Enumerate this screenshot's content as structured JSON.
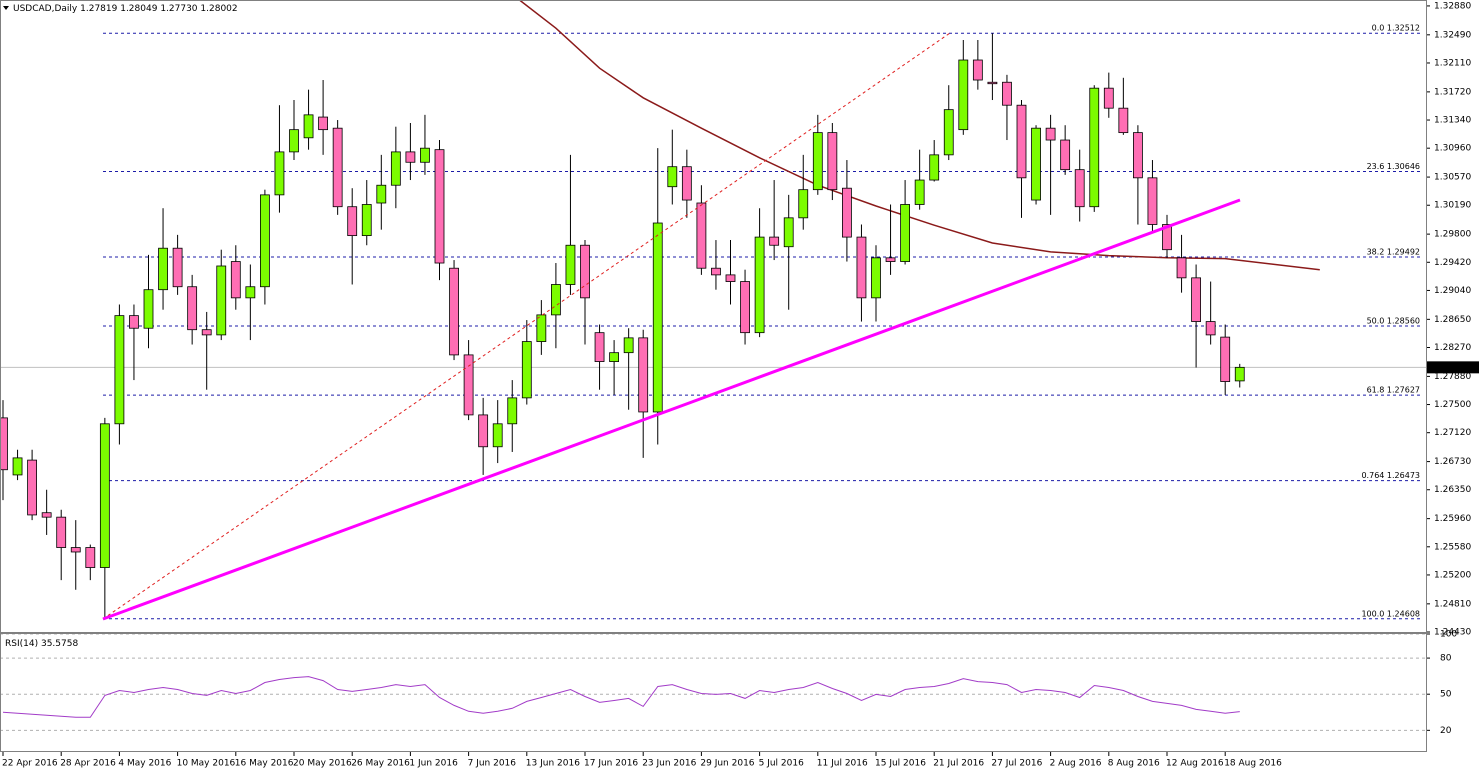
{
  "chart_data": [
    {
      "type": "candlestick",
      "title": "USDCAD,Daily",
      "quote": [
        "1.27819",
        "1.28049",
        "1.27730",
        "1.28002"
      ],
      "categories": [
        "22 Apr 2016",
        null,
        null,
        null,
        "28 Apr 2016",
        null,
        null,
        null,
        "4 May 2016",
        null,
        null,
        null,
        "10 May 2016",
        null,
        null,
        null,
        "16 May 2016",
        null,
        null,
        null,
        "20 May 2016",
        null,
        null,
        null,
        "26 May 2016",
        null,
        null,
        null,
        "1 Jun 2016",
        null,
        null,
        null,
        "7 Jun 2016",
        null,
        null,
        null,
        "13 Jun 2016",
        null,
        null,
        null,
        "17 Jun 2016",
        null,
        null,
        null,
        "23 Jun 2016",
        null,
        null,
        null,
        "29 Jun 2016",
        null,
        null,
        null,
        "5 Jul 2016",
        null,
        null,
        null,
        "11 Jul 2016",
        null,
        null,
        null,
        "15 Jul 2016",
        null,
        null,
        null,
        "21 Jul 2016",
        null,
        null,
        null,
        "27 Jul 2016",
        null,
        null,
        null,
        "2 Aug 2016",
        null,
        null,
        null,
        "8 Aug 2016",
        null,
        null,
        null,
        "12 Aug 2016",
        null,
        null,
        null,
        "18 Aug 2016",
        null
      ],
      "open": [
        1.2732,
        1.2655,
        1.2675,
        1.2604,
        1.2598,
        1.2557,
        1.2557,
        1.253,
        1.2724,
        1.287,
        1.2853,
        1.2905,
        1.2961,
        1.2909,
        1.2851,
        1.2844,
        1.2943,
        1.2894,
        1.2909,
        1.3033,
        1.3091,
        1.311,
        1.3138,
        1.3123,
        1.3017,
        1.2978,
        1.3022,
        1.3046,
        1.3091,
        1.3077,
        1.3094,
        1.2934,
        1.2817,
        1.2736,
        1.2693,
        1.2724,
        1.2759,
        1.2835,
        1.2871,
        1.2912,
        1.2965,
        1.2847,
        1.2808,
        1.282,
        1.284,
        1.274,
        1.3044,
        1.3071,
        1.3022,
        1.2934,
        1.2925,
        1.2916,
        1.2847,
        1.2976,
        1.2963,
        1.3002,
        1.304,
        1.3117,
        1.3042,
        1.2976,
        1.2894,
        1.2948,
        1.2943,
        1.302,
        1.3053,
        1.3087,
        1.3121,
        1.3215,
        1.3185,
        1.3185,
        1.3154,
        1.3026,
        1.3123,
        1.3107,
        1.3067,
        1.3017,
        1.3177,
        1.315,
        1.3117,
        1.3056,
        1.2993,
        1.2948,
        1.2921,
        1.2862,
        1.2841,
        1.27819
      ],
      "high": [
        1.2756,
        1.2689,
        1.2689,
        1.2635,
        1.2608,
        1.2594,
        1.2561,
        1.2732,
        1.2885,
        1.2885,
        1.2952,
        1.3015,
        1.2979,
        1.2925,
        1.2875,
        1.2959,
        1.2965,
        1.2939,
        1.304,
        1.3154,
        1.3161,
        1.3175,
        1.3188,
        1.3134,
        1.3042,
        1.3053,
        1.3087,
        1.3125,
        1.313,
        1.3141,
        1.3107,
        1.2945,
        1.2837,
        1.2759,
        1.2756,
        1.2783,
        1.2864,
        1.2891,
        1.2941,
        1.3087,
        1.2972,
        1.2858,
        1.2837,
        1.2853,
        1.2851,
        1.3096,
        1.3121,
        1.3094,
        1.3046,
        1.2972,
        1.2972,
        1.2932,
        1.3015,
        1.3053,
        1.3033,
        1.3087,
        1.3141,
        1.313,
        1.308,
        1.2993,
        1.2965,
        1.302,
        1.3053,
        1.3094,
        1.3107,
        1.3181,
        1.3242,
        1.3242,
        1.3251,
        1.3195,
        1.3161,
        1.3127,
        1.3141,
        1.3127,
        1.3094,
        1.3181,
        1.3198,
        1.3191,
        1.3127,
        1.308,
        1.3006,
        1.2979,
        1.2939,
        1.2916,
        1.2858,
        1.28049
      ],
      "low": [
        1.2621,
        1.2648,
        1.2594,
        1.2574,
        1.2513,
        1.25,
        1.2513,
        1.2462,
        1.2696,
        1.2783,
        1.2826,
        1.2878,
        1.2898,
        1.2831,
        1.277,
        1.2837,
        1.2878,
        1.2837,
        1.2885,
        1.3009,
        1.308,
        1.3094,
        1.3087,
        1.3006,
        1.2912,
        1.2965,
        1.2986,
        1.3015,
        1.3053,
        1.306,
        1.2918,
        1.281,
        1.2729,
        1.2655,
        1.2671,
        1.2686,
        1.275,
        1.2817,
        1.2826,
        1.2898,
        1.2831,
        1.277,
        1.2763,
        1.2743,
        1.2678,
        1.2696,
        1.302,
        1.3002,
        1.2925,
        1.2905,
        1.2885,
        1.2831,
        1.2841,
        1.2945,
        1.2878,
        1.2986,
        1.3033,
        1.3026,
        1.2943,
        1.2862,
        1.2862,
        1.2925,
        1.2939,
        1.3013,
        1.3051,
        1.308,
        1.3114,
        1.3175,
        1.3161,
        1.3107,
        1.3002,
        1.302,
        1.3006,
        1.306,
        1.2997,
        1.301,
        1.3137,
        1.3114,
        1.2993,
        1.2983,
        1.2948,
        1.2901,
        1.28,
        1.2831,
        1.2763,
        1.2773
      ],
      "close": [
        1.2662,
        1.2678,
        1.2601,
        1.2598,
        1.2557,
        1.2551,
        1.253,
        1.2724,
        1.287,
        1.2853,
        1.2905,
        1.2961,
        1.2909,
        1.2851,
        1.2844,
        1.2937,
        1.2894,
        1.2909,
        1.3033,
        1.3091,
        1.3121,
        1.3141,
        1.3121,
        1.3017,
        1.2978,
        1.302,
        1.3046,
        1.3091,
        1.3077,
        1.3096,
        1.2941,
        1.2817,
        1.2736,
        1.2693,
        1.2724,
        1.2759,
        1.2835,
        1.2871,
        1.2912,
        1.2965,
        1.2894,
        1.2808,
        1.282,
        1.284,
        1.274,
        1.2995,
        1.3071,
        1.3026,
        1.2934,
        1.2925,
        1.2916,
        1.2847,
        1.2976,
        1.2965,
        1.3002,
        1.304,
        1.3117,
        1.304,
        1.2976,
        1.2894,
        1.2948,
        1.2943,
        1.302,
        1.3053,
        1.3087,
        1.3148,
        1.3215,
        1.3188,
        1.3183,
        1.3154,
        1.3056,
        1.3123,
        1.3107,
        1.3067,
        1.3017,
        1.3177,
        1.315,
        1.3117,
        1.3056,
        1.2993,
        1.2959,
        1.2921,
        1.2862,
        1.2844,
        1.2781,
        1.28002
      ],
      "up_color": "#7cfc00",
      "down_color": "#ff6eb4",
      "overlay": {
        "color": "#8b1a1a",
        "x": [
          35.5,
          38,
          41,
          44,
          48,
          52,
          56,
          60,
          64,
          68,
          72,
          76,
          80,
          84,
          90.5
        ],
        "values": [
          1.3296,
          1.3258,
          1.3204,
          1.3164,
          1.3123,
          1.3083,
          1.3046,
          1.3018,
          1.2992,
          1.2968,
          1.2956,
          1.2951,
          1.2948,
          1.2947,
          1.2932
        ]
      },
      "fib_levels": [
        {
          "value": 1.32512,
          "label": "0.0 1.32512"
        },
        {
          "value": 1.30646,
          "label": "23.6 1.30646"
        },
        {
          "value": 1.29492,
          "label": "38.2 1.29492"
        },
        {
          "value": 1.2856,
          "label": "50.0 1.28560"
        },
        {
          "value": 1.27627,
          "label": "61.8 1.27627"
        },
        {
          "value": 1.26473,
          "label": "0.764 1.26473"
        },
        {
          "value": 1.24608,
          "label": "100.0 1.24608"
        }
      ],
      "fib_color": "#1c1ca8",
      "ylim": [
        1.2443,
        1.3296
      ],
      "yticks": [
        {
          "value": 1.3288,
          "label": "1.32880"
        },
        {
          "value": 1.3249,
          "label": "1.32490"
        },
        {
          "value": 1.3211,
          "label": "1.32110"
        },
        {
          "value": 1.3172,
          "label": "1.31720"
        },
        {
          "value": 1.3134,
          "label": "1.31340"
        },
        {
          "value": 1.3096,
          "label": "1.30960"
        },
        {
          "value": 1.3057,
          "label": "1.30570"
        },
        {
          "value": 1.3019,
          "label": "1.30190"
        },
        {
          "value": 1.298,
          "label": "1.29800"
        },
        {
          "value": 1.2942,
          "label": "1.29420"
        },
        {
          "value": 1.2904,
          "label": "1.29040"
        },
        {
          "value": 1.2865,
          "label": "1.28650"
        },
        {
          "value": 1.2827,
          "label": "1.28270"
        },
        {
          "value": 1.2788,
          "label": "1.27880"
        },
        {
          "value": 1.275,
          "label": "1.27500"
        },
        {
          "value": 1.2712,
          "label": "1.27120"
        },
        {
          "value": 1.2673,
          "label": "1.26730"
        },
        {
          "value": 1.2635,
          "label": "1.26350"
        },
        {
          "value": 1.2596,
          "label": "1.25960"
        },
        {
          "value": 1.2558,
          "label": "1.25580"
        },
        {
          "value": 1.252,
          "label": "1.25200"
        },
        {
          "value": 1.2481,
          "label": "1.24810"
        },
        {
          "value": 1.2443,
          "label": "1.24430"
        }
      ]
    },
    {
      "type": "line",
      "title": "RSI(14)",
      "color": "#a23cc8",
      "values": [
        35.0,
        34.1,
        33.3,
        32.5,
        31.7,
        30.8,
        30.8,
        49.0,
        53.1,
        51.4,
        53.9,
        55.6,
        53.9,
        50.6,
        49.0,
        53.1,
        50.6,
        53.1,
        59.7,
        62.2,
        63.8,
        64.6,
        61.3,
        53.9,
        52.3,
        53.9,
        55.6,
        58.0,
        56.4,
        58.0,
        47.3,
        40.7,
        35.8,
        34.1,
        35.8,
        38.3,
        44.0,
        47.3,
        50.6,
        53.9,
        48.1,
        43.2,
        44.8,
        46.5,
        39.9,
        56.4,
        58.0,
        53.9,
        50.6,
        49.8,
        50.6,
        46.5,
        53.1,
        51.4,
        53.9,
        55.6,
        59.7,
        54.7,
        50.6,
        44.8,
        49.8,
        48.1,
        53.9,
        55.6,
        56.4,
        58.9,
        63.0,
        60.5,
        59.7,
        58.0,
        51.4,
        53.9,
        53.1,
        51.4,
        47.3,
        57.2,
        55.6,
        53.1,
        48.1,
        44.0,
        42.4,
        40.7,
        37.4,
        35.8,
        34.1,
        35.5758
      ],
      "ylim": [
        2,
        100
      ],
      "yticks": [
        100,
        80,
        50,
        20
      ],
      "grid": true
    }
  ]
}
